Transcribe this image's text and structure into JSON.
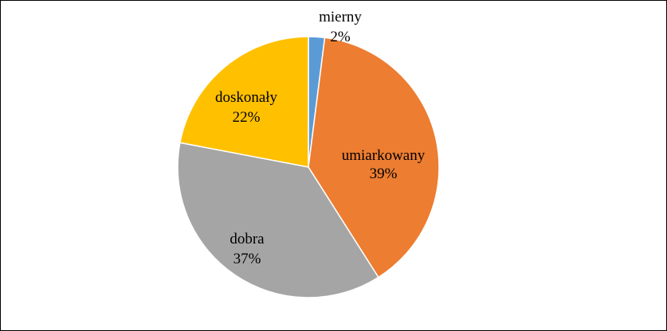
{
  "chart_data": {
    "type": "pie",
    "title": "",
    "legend": "none",
    "slices": [
      {
        "label": "mierny",
        "value": 2,
        "value_label": "2%",
        "color": "#5B9BD5"
      },
      {
        "label": "umiarkowany",
        "value": 39,
        "value_label": "39%",
        "color": "#ED7D31"
      },
      {
        "label": "dobra",
        "value": 37,
        "value_label": "37%",
        "color": "#A5A5A5"
      },
      {
        "label": "doskonały",
        "value": 22,
        "value_label": "22%",
        "color": "#FFC000"
      }
    ],
    "start_angle_deg": 0,
    "direction": "clockwise",
    "border_color": "#FFFFFF"
  }
}
